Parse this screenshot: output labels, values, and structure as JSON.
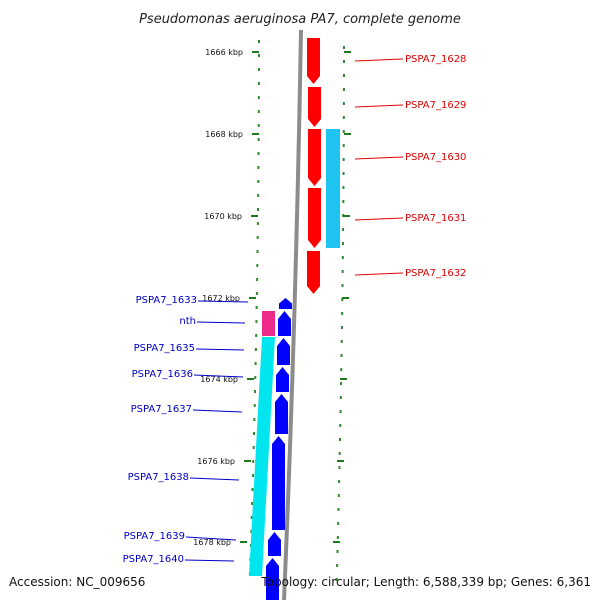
{
  "title": "Pseudomonas aeruginosa PA7, complete genome",
  "footer": {
    "accession": "Accession: NC_009656",
    "topology": "Topology: circular; Length: 6,588,339 bp; Genes: 6,361"
  },
  "colors": {
    "backbone": "#8c8c8c",
    "tick": "#1f7a1f",
    "dots": "#2e8b2e",
    "forward_gene": "#ff0000",
    "forward_cds": "#1ec3f0",
    "reverse_gene": "#0000ff",
    "reverse_cds": "#00e5ee",
    "rna": "#ee2a8a",
    "forward_label": "#e00000",
    "reverse_label": "#0000c8"
  },
  "scale": {
    "unit": "kbp",
    "ticks": [
      "1666 kbp",
      "1668 kbp",
      "1670 kbp",
      "1672 kbp",
      "1674 kbp",
      "1676 kbp",
      "1678 kbp"
    ]
  },
  "forward_genes": [
    {
      "label": "PSPA7_1628"
    },
    {
      "label": "PSPA7_1629"
    },
    {
      "label": "PSPA7_1630"
    },
    {
      "label": "PSPA7_1631"
    },
    {
      "label": "PSPA7_1632"
    }
  ],
  "reverse_genes": [
    {
      "label": "PSPA7_1633"
    },
    {
      "label": "nth"
    },
    {
      "label": "PSPA7_1635"
    },
    {
      "label": "PSPA7_1636"
    },
    {
      "label": "PSPA7_1637"
    },
    {
      "label": "PSPA7_1638"
    },
    {
      "label": "PSPA7_1639"
    },
    {
      "label": "PSPA7_1640"
    }
  ]
}
